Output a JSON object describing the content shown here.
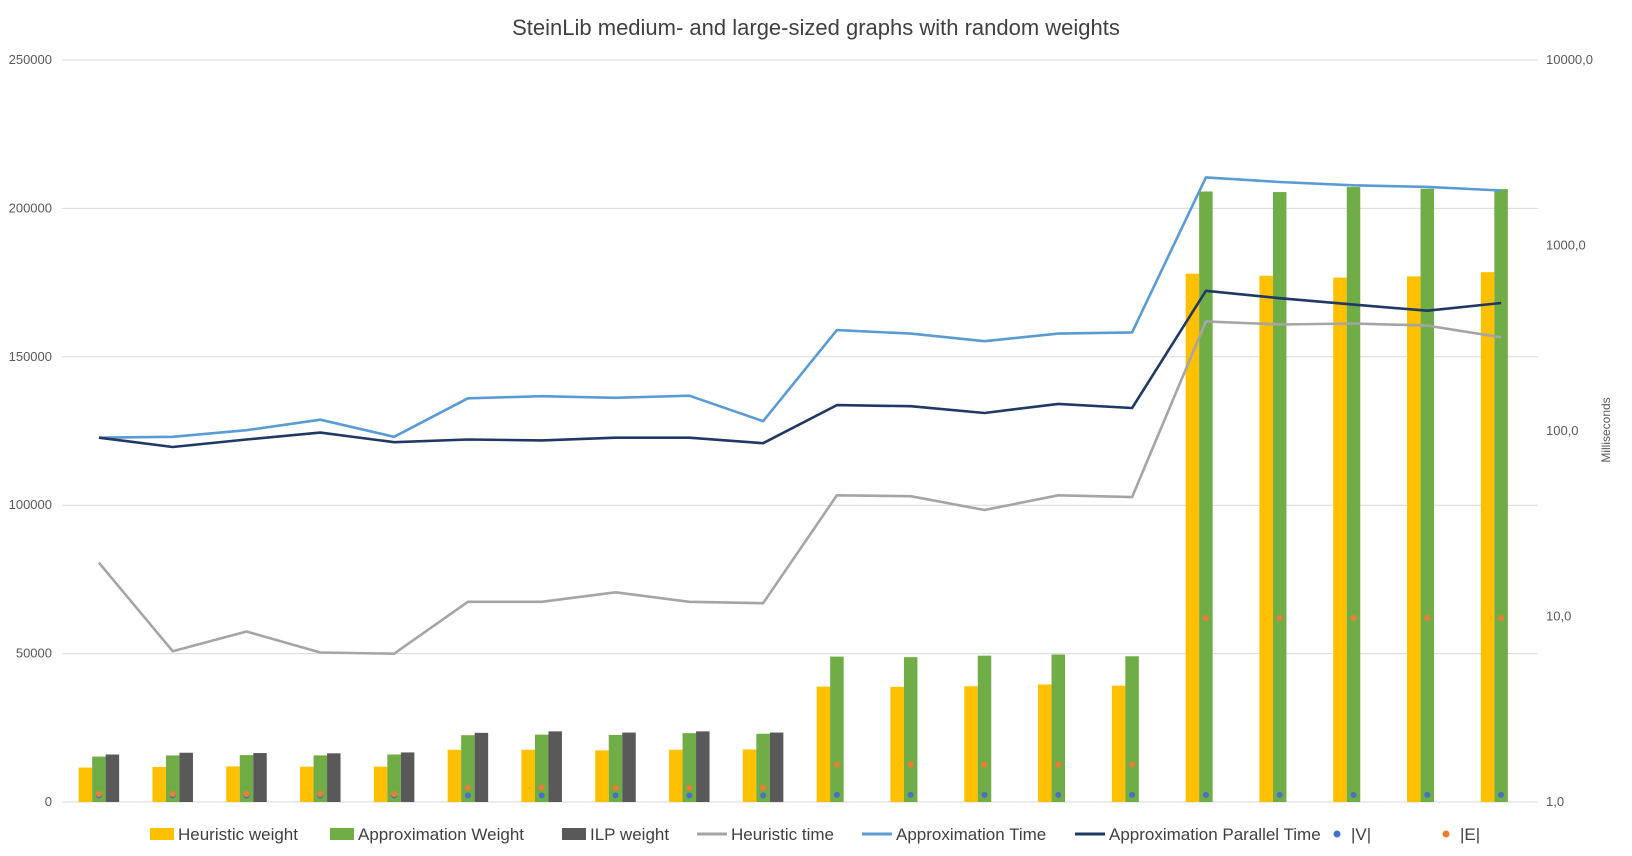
{
  "chart_data": {
    "type": "bar",
    "title": "SteinLib medium- and large-sized graphs with random weights",
    "y_left": {
      "ylim": [
        0,
        250000
      ],
      "ticks": [
        0,
        50000,
        100000,
        150000,
        200000,
        250000
      ],
      "tick_labels": [
        "0",
        "50000",
        "100000",
        "150000",
        "200000",
        "250000"
      ]
    },
    "y_right": {
      "scale": "log",
      "ylim": [
        1,
        10000
      ],
      "ticks": [
        1,
        10,
        100,
        1000,
        10000
      ],
      "tick_labels": [
        "1,0",
        "10,0",
        "100,0",
        "1000,0",
        "10000,0"
      ],
      "ylabel": "Milliseconds"
    },
    "legend_position": "bottom",
    "grid": true,
    "series": [
      {
        "name": "Heuristic weight",
        "type": "bar",
        "axis": "left",
        "color": "#FFC000",
        "values": [
          11600,
          11800,
          12000,
          11900,
          11900,
          17600,
          17600,
          17400,
          17600,
          17700,
          38900,
          38800,
          39000,
          39600,
          39200,
          178000,
          177300,
          176700,
          177100,
          178500
        ]
      },
      {
        "name": "Approximation Weight",
        "type": "bar",
        "axis": "left",
        "color": "#70AD47",
        "values": [
          15300,
          15700,
          15800,
          15700,
          16000,
          22500,
          22700,
          22600,
          23200,
          23000,
          49000,
          48800,
          49300,
          49700,
          49100,
          205700,
          205500,
          207200,
          206600,
          206500
        ]
      },
      {
        "name": "ILP weight",
        "type": "bar",
        "axis": "left",
        "color": "#595959",
        "values": [
          16000,
          16600,
          16500,
          16400,
          16700,
          23300,
          23800,
          23400,
          23800,
          23400,
          null,
          null,
          null,
          null,
          null,
          null,
          null,
          null,
          null,
          null
        ]
      },
      {
        "name": "Heuristic time",
        "type": "line",
        "axis": "right",
        "color": "#A5A5A5",
        "values": [
          19.5,
          6.5,
          8.3,
          6.4,
          6.3,
          12.0,
          12.0,
          13.5,
          12.0,
          11.8,
          45.0,
          44.5,
          37.5,
          45.0,
          44.0,
          390,
          375,
          380,
          370,
          320
        ]
      },
      {
        "name": "Approximation Time",
        "type": "line",
        "axis": "right",
        "color": "#5B9BD5",
        "values": [
          92,
          93,
          101,
          115,
          93,
          150,
          154,
          151,
          155,
          113,
          350,
          335,
          305,
          335,
          340,
          2330,
          2200,
          2110,
          2070,
          1980
        ]
      },
      {
        "name": "Approximation Parallel Time",
        "type": "line",
        "axis": "right",
        "color": "#203864",
        "values": [
          92,
          82,
          90,
          98,
          87,
          90,
          89,
          92,
          92,
          86,
          138,
          136,
          125,
          140,
          133,
          570,
          520,
          480,
          445,
          490
        ]
      },
      {
        "name": "|V|",
        "type": "scatter",
        "axis": "left",
        "color": "#4472C4",
        "values": [
          2200,
          2200,
          2200,
          2200,
          2200,
          2200,
          2200,
          2200,
          2200,
          2200,
          2400,
          2400,
          2400,
          2400,
          2400,
          2400,
          2400,
          2400,
          2400,
          2400
        ]
      },
      {
        "name": "|E|",
        "type": "scatter",
        "axis": "left",
        "color": "#ED7D31",
        "values": [
          2700,
          2700,
          2700,
          2700,
          2700,
          4800,
          4800,
          4800,
          4800,
          4800,
          12600,
          12600,
          12600,
          12600,
          12600,
          62000,
          62000,
          62000,
          62000,
          62000
        ]
      }
    ]
  }
}
